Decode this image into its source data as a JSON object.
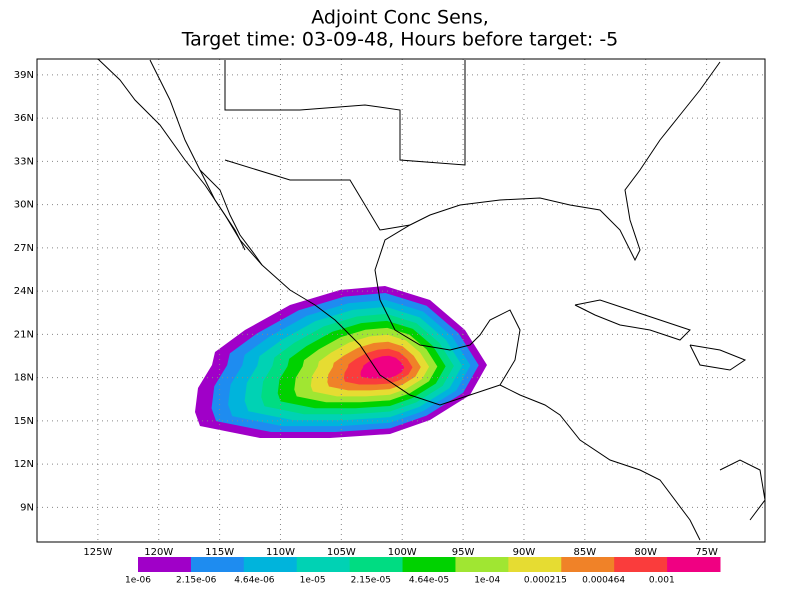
{
  "map": {
    "title": [
      "Adjoint Conc Sens,",
      "Target time: 03-09-48, Hours before target: -5"
    ],
    "lonlim": [
      -130,
      -70.2
    ],
    "latlim": [
      6.6,
      40.1
    ],
    "lonticks": [
      {
        "value": -125,
        "label": "125W"
      },
      {
        "value": -120,
        "label": "120W"
      },
      {
        "value": -115,
        "label": "115W"
      },
      {
        "value": -110,
        "label": "110W"
      },
      {
        "value": -105,
        "label": "105W"
      },
      {
        "value": -100,
        "label": "100W"
      },
      {
        "value": -95,
        "label": "95W"
      },
      {
        "value": -90,
        "label": "90W"
      },
      {
        "value": -85,
        "label": "85W"
      },
      {
        "value": -80,
        "label": "80W"
      },
      {
        "value": -75,
        "label": "75W"
      }
    ],
    "latticks": [
      {
        "value": 9,
        "label": "9N"
      },
      {
        "value": 12,
        "label": "12N"
      },
      {
        "value": 15,
        "label": "15N"
      },
      {
        "value": 18,
        "label": "18N"
      },
      {
        "value": 21,
        "label": "21N"
      },
      {
        "value": 24,
        "label": "24N"
      },
      {
        "value": 27,
        "label": "27N"
      },
      {
        "value": 30,
        "label": "30N"
      },
      {
        "value": 33,
        "label": "33N"
      },
      {
        "value": 36,
        "label": "36N"
      },
      {
        "value": 39,
        "label": "39N"
      }
    ],
    "grid": true,
    "colorbar": {
      "colors": [
        "#a000c8",
        "#1e8cf0",
        "#00b4dc",
        "#00d2b4",
        "#00dc82",
        "#00d200",
        "#a0e632",
        "#e6dc32",
        "#f08228",
        "#fa3c3c",
        "#f00082"
      ],
      "labels": [
        "1e-06",
        "2.15e-06",
        "4.64e-06",
        "1e-05",
        "2.15e-05",
        "4.64e-05",
        "1e-04",
        "0.000215",
        "0.000464",
        "0.001"
      ]
    }
  }
}
